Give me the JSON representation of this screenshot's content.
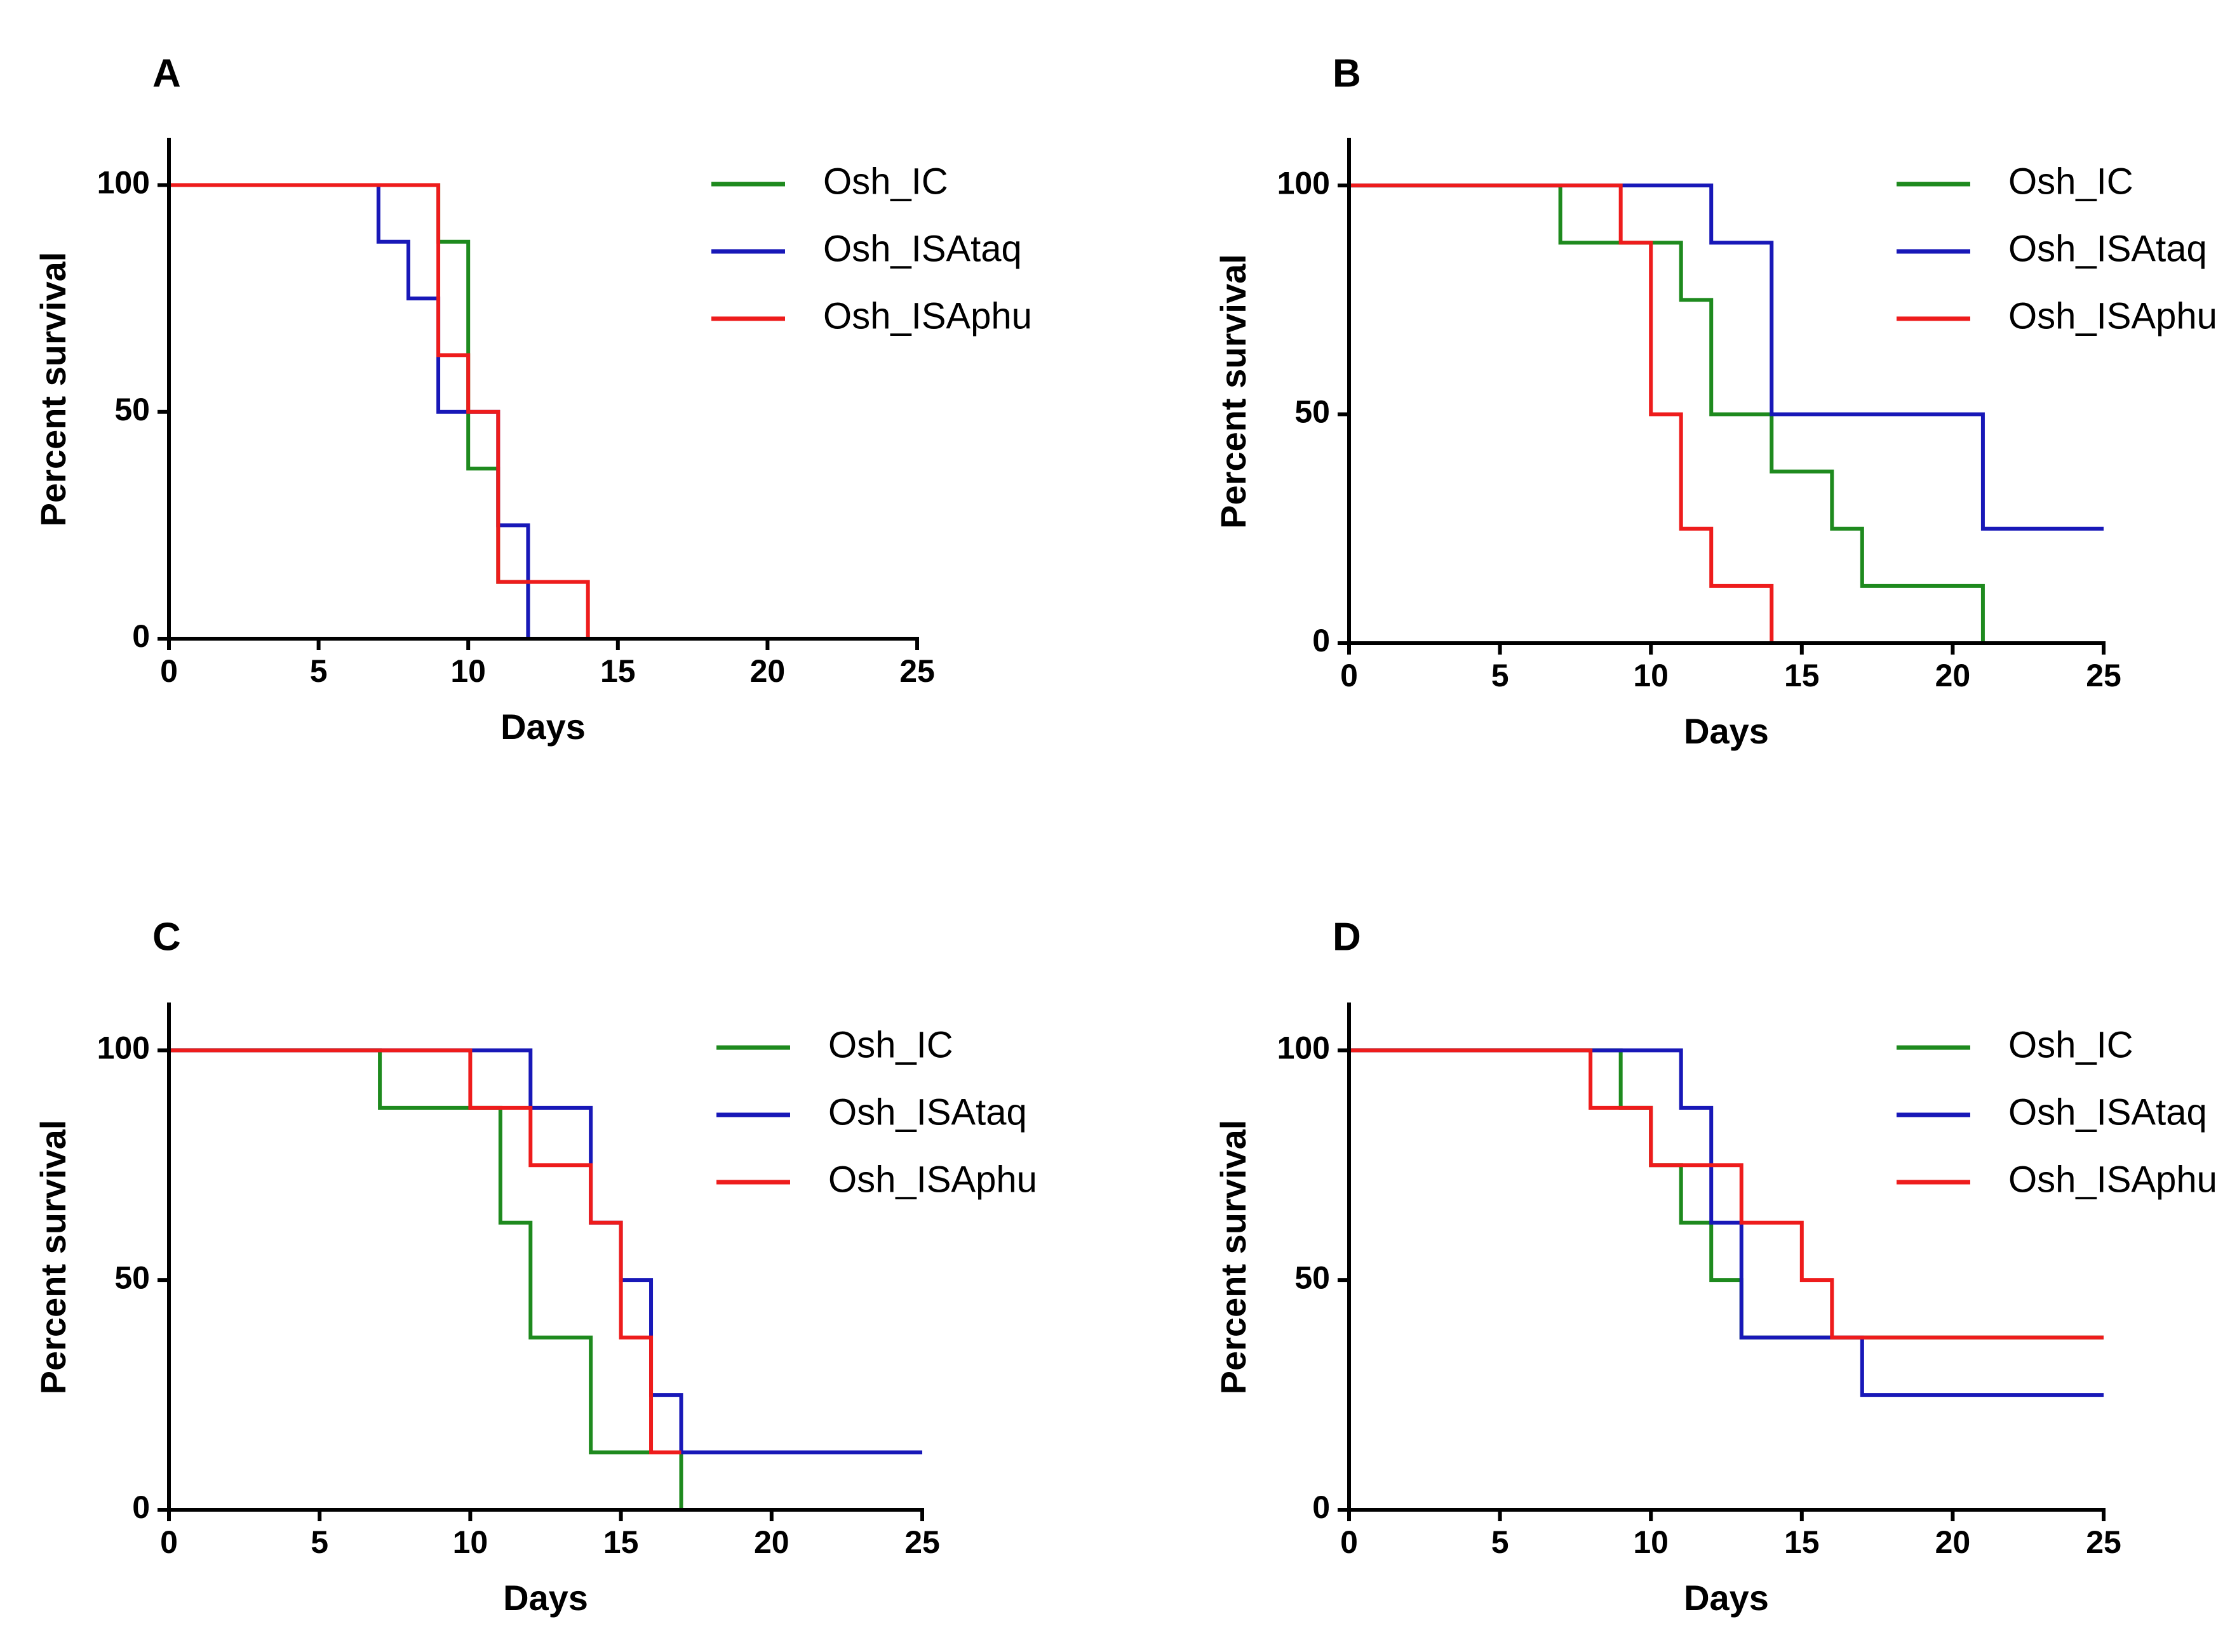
{
  "colors": {
    "Osh_IC": "#1e8a1e",
    "Osh_ISAtaq": "#1818b8",
    "Osh_ISAphu": "#ee1c1c",
    "axis": "#000000"
  },
  "chart_data": [
    {
      "type": "line",
      "panel": "A",
      "xlabel": "Days",
      "ylabel": "Percent survival",
      "xlim": [
        0,
        25
      ],
      "ylim": [
        0,
        110
      ],
      "xticks": [
        0,
        5,
        10,
        15,
        20,
        25
      ],
      "yticks": [
        0,
        50,
        100
      ],
      "legend": [
        "Osh_IC",
        "Osh_ISAtaq",
        "Osh_ISAphu"
      ],
      "legend_placement": "top-right",
      "series": [
        {
          "name": "Osh_IC",
          "x": [
            0,
            9,
            10,
            11,
            12
          ],
          "values": [
            100,
            87.5,
            37.5,
            12.5,
            0
          ]
        },
        {
          "name": "Osh_ISAtaq",
          "x": [
            0,
            7,
            8,
            9,
            11,
            12
          ],
          "values": [
            100,
            87.5,
            75,
            50,
            25,
            0
          ]
        },
        {
          "name": "Osh_ISAphu",
          "x": [
            0,
            9,
            10,
            11,
            14
          ],
          "values": [
            100,
            62.5,
            50,
            12.5,
            0
          ]
        }
      ]
    },
    {
      "type": "line",
      "panel": "B",
      "xlabel": "Days",
      "ylabel": "Percent survival",
      "xlim": [
        0,
        25
      ],
      "ylim": [
        0,
        110
      ],
      "xticks": [
        0,
        5,
        10,
        15,
        20,
        25
      ],
      "yticks": [
        0,
        50,
        100
      ],
      "legend": [
        "Osh_IC",
        "Osh_ISAtaq",
        "Osh_ISAphu"
      ],
      "legend_placement": "top-right",
      "series": [
        {
          "name": "Osh_IC",
          "x": [
            0,
            7,
            11,
            12,
            14,
            16,
            17,
            21
          ],
          "values": [
            100,
            87.5,
            75,
            50,
            37.5,
            25,
            12.5,
            0
          ]
        },
        {
          "name": "Osh_ISAtaq",
          "x": [
            0,
            12,
            14,
            21,
            25
          ],
          "values": [
            100,
            87.5,
            50,
            25,
            25
          ]
        },
        {
          "name": "Osh_ISAphu",
          "x": [
            0,
            9,
            10,
            11,
            12,
            14
          ],
          "values": [
            100,
            87.5,
            50,
            25,
            12.5,
            0
          ]
        }
      ]
    },
    {
      "type": "line",
      "panel": "C",
      "xlabel": "Days",
      "ylabel": "Percent survival",
      "xlim": [
        0,
        25
      ],
      "ylim": [
        0,
        110
      ],
      "xticks": [
        0,
        5,
        10,
        15,
        20,
        25
      ],
      "yticks": [
        0,
        50,
        100
      ],
      "legend": [
        "Osh_IC",
        "Osh_ISAtaq",
        "Osh_ISAphu"
      ],
      "legend_placement": "top-right",
      "series": [
        {
          "name": "Osh_IC",
          "x": [
            0,
            7,
            11,
            12,
            14,
            17
          ],
          "values": [
            100,
            87.5,
            62.5,
            37.5,
            12.5,
            0
          ]
        },
        {
          "name": "Osh_ISAtaq",
          "x": [
            0,
            12,
            14,
            15,
            16,
            17,
            25
          ],
          "values": [
            100,
            87.5,
            62.5,
            50,
            25,
            12.5,
            12.5
          ]
        },
        {
          "name": "Osh_ISAphu",
          "x": [
            0,
            10,
            12,
            14,
            15,
            16,
            17
          ],
          "values": [
            100,
            87.5,
            75,
            62.5,
            37.5,
            12.5,
            12.5
          ]
        }
      ]
    },
    {
      "type": "line",
      "panel": "D",
      "xlabel": "Days",
      "ylabel": "Percent survival",
      "xlim": [
        0,
        25
      ],
      "ylim": [
        0,
        110
      ],
      "xticks": [
        0,
        5,
        10,
        15,
        20,
        25
      ],
      "yticks": [
        0,
        50,
        100
      ],
      "legend": [
        "Osh_IC",
        "Osh_ISAtaq",
        "Osh_ISAphu"
      ],
      "legend_placement": "top-right",
      "series": [
        {
          "name": "Osh_IC",
          "x": [
            0,
            9,
            10,
            11,
            12,
            13,
            25
          ],
          "values": [
            100,
            87.5,
            75,
            62.5,
            50,
            37.5,
            37.5
          ]
        },
        {
          "name": "Osh_ISAtaq",
          "x": [
            0,
            11,
            12,
            13,
            17,
            25
          ],
          "values": [
            100,
            87.5,
            62.5,
            37.5,
            25,
            25
          ]
        },
        {
          "name": "Osh_ISAphu",
          "x": [
            0,
            8,
            10,
            11,
            13,
            15,
            16,
            25
          ],
          "values": [
            100,
            87.5,
            75,
            75,
            62.5,
            50,
            37.5,
            37.5
          ]
        }
      ]
    }
  ]
}
